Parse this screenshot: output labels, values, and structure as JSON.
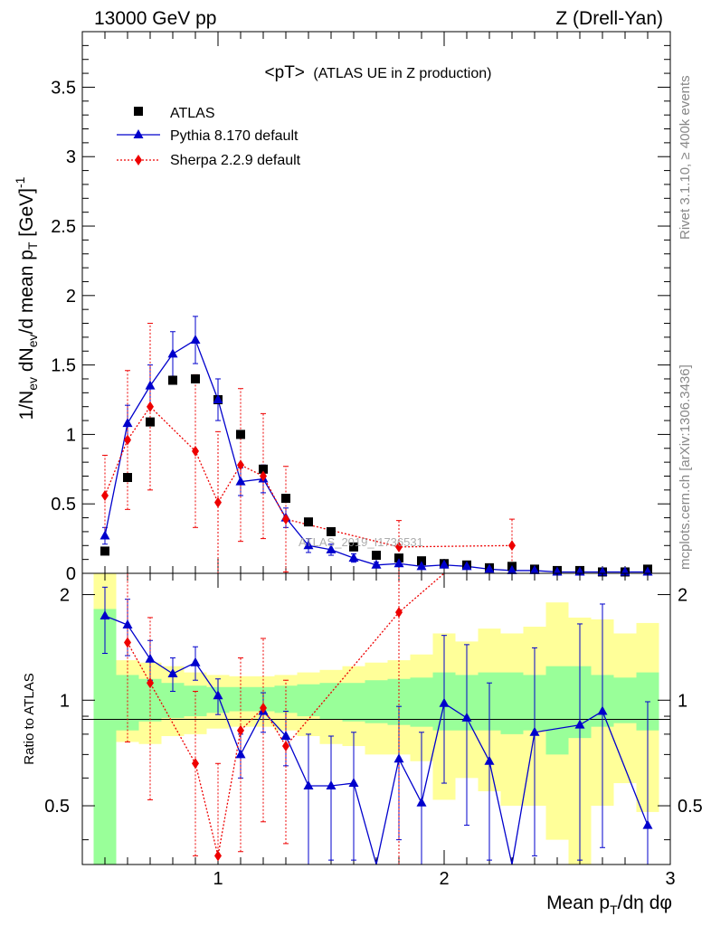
{
  "header": {
    "left": "13000 GeV pp",
    "right": "Z (Drell-Yan)"
  },
  "side_labels": {
    "rivet": "Rivet 3.1.10, ≥ 400k events",
    "mcplots": "mcplots.cern.ch [arXiv:1306.3436]"
  },
  "watermark": "ATLAS_2019_I1736531",
  "chart_data": [
    {
      "type": "scatter",
      "panel": "main",
      "title": "<pT> (ATLAS UE in Z production)",
      "title_main": "<pT>",
      "title_rest": "(ATLAS UE in Z production)",
      "ylabel": "1/N_ev dN_ev/d mean p_T [GeV]^-1",
      "ylabel_parts": {
        "a": "1/N",
        "a_sub": "ev",
        "b": " dN",
        "b_sub": "ev",
        "c": "/d mean p",
        "c_sub": "T",
        "d": " [GeV]",
        "d_sup": "-1"
      },
      "xlim": [
        0.4,
        3.0
      ],
      "ylim": [
        0,
        3.9
      ],
      "y_ticks": [
        "0",
        "0.5",
        "1",
        "1.5",
        "2",
        "2.5",
        "3",
        "3.5"
      ],
      "legend_position": "top-left",
      "series": [
        {
          "name": "ATLAS",
          "color": "#000000",
          "marker": "square",
          "x": [
            0.5,
            0.6,
            0.7,
            0.8,
            0.9,
            1.0,
            1.1,
            1.2,
            1.3,
            1.4,
            1.5,
            1.6,
            1.7,
            1.8,
            1.9,
            2.0,
            2.1,
            2.2,
            2.3,
            2.4,
            2.5,
            2.6,
            2.7,
            2.8,
            2.9
          ],
          "y": [
            0.16,
            0.69,
            1.09,
            1.39,
            1.4,
            1.25,
            1.0,
            0.75,
            0.54,
            0.37,
            0.3,
            0.19,
            0.13,
            0.11,
            0.09,
            0.07,
            0.06,
            0.04,
            0.05,
            0.03,
            0.02,
            0.02,
            0.01,
            0.01,
            0.03
          ]
        },
        {
          "name": "Pythia 8.170 default",
          "color": "#0000cc",
          "marker": "triangle",
          "line": "solid",
          "x": [
            0.5,
            0.6,
            0.7,
            0.8,
            0.9,
            1.0,
            1.1,
            1.2,
            1.3,
            1.4,
            1.5,
            1.6,
            1.7,
            1.8,
            1.9,
            2.0,
            2.1,
            2.2,
            2.3,
            2.4,
            2.5,
            2.6,
            2.7,
            2.8,
            2.9
          ],
          "y": [
            0.27,
            1.08,
            1.35,
            1.58,
            1.68,
            1.25,
            0.66,
            0.68,
            0.4,
            0.2,
            0.17,
            0.11,
            0.06,
            0.07,
            0.05,
            0.06,
            0.05,
            0.03,
            0.02,
            0.02,
            0.01,
            0.01,
            0.01,
            0.01,
            0.01
          ],
          "err": [
            0.06,
            0.13,
            0.15,
            0.16,
            0.17,
            0.15,
            0.1,
            0.1,
            0.07,
            0.05,
            0.04,
            0.03,
            0.02,
            0.02,
            0.02,
            0.02,
            0.02,
            0.01,
            0.01,
            0.01,
            0.01,
            0.01,
            0.01,
            0.01,
            0.01
          ]
        },
        {
          "name": "Sherpa 2.2.9 default",
          "color": "#ee0000",
          "marker": "diamond",
          "line": "dotted",
          "x": [
            0.5,
            0.6,
            0.7,
            0.9,
            1.0,
            1.1,
            1.2,
            1.3,
            1.8,
            2.3
          ],
          "y": [
            0.56,
            0.96,
            1.2,
            0.88,
            0.51,
            0.78,
            0.7,
            0.39,
            0.19,
            0.2
          ],
          "err": [
            0.29,
            0.5,
            0.6,
            0.55,
            0.51,
            0.55,
            0.45,
            0.38,
            0.19,
            0.19
          ]
        }
      ]
    },
    {
      "type": "scatter",
      "panel": "ratio",
      "ylabel": "Ratio to ATLAS",
      "xlabel": "Mean p_T/dη dφ",
      "xlabel_parts": {
        "a": "Mean p",
        "a_sub": "T",
        "b": "/dη dφ"
      },
      "xlim": [
        0.4,
        3.0
      ],
      "ylim": [
        0.34,
        2.3
      ],
      "x_ticks": [
        "1",
        "2",
        "3"
      ],
      "y_ticks": [
        "0.5",
        "1",
        "2"
      ],
      "bands": {
        "x_edges": [
          0.45,
          0.55,
          0.65,
          0.75,
          0.85,
          0.95,
          1.05,
          1.15,
          1.25,
          1.35,
          1.45,
          1.55,
          1.65,
          1.75,
          1.85,
          1.95,
          2.05,
          2.15,
          2.25,
          2.35,
          2.45,
          2.55,
          2.65,
          2.75,
          2.85,
          2.95
        ],
        "green_lo": [
          0.34,
          0.82,
          0.87,
          0.89,
          0.9,
          0.92,
          0.93,
          0.93,
          0.92,
          0.9,
          0.88,
          0.87,
          0.86,
          0.85,
          0.84,
          0.82,
          0.82,
          0.82,
          0.8,
          0.82,
          0.7,
          0.78,
          0.84,
          0.86,
          0.82
        ],
        "green_hi": [
          1.82,
          1.18,
          1.15,
          1.12,
          1.1,
          1.09,
          1.09,
          1.09,
          1.1,
          1.11,
          1.12,
          1.12,
          1.14,
          1.15,
          1.16,
          1.2,
          1.18,
          1.2,
          1.2,
          1.18,
          1.25,
          1.25,
          1.18,
          1.16,
          1.2
        ],
        "yellow_lo": [
          0.34,
          0.76,
          0.75,
          0.79,
          0.8,
          0.83,
          0.84,
          0.84,
          0.82,
          0.79,
          0.75,
          0.74,
          0.7,
          0.7,
          0.67,
          0.52,
          0.6,
          0.55,
          0.5,
          0.5,
          0.4,
          0.34,
          0.5,
          0.58,
          0.48
        ],
        "yellow_hi": [
          2.3,
          1.3,
          1.28,
          1.25,
          1.2,
          1.18,
          1.17,
          1.17,
          1.18,
          1.2,
          1.22,
          1.25,
          1.28,
          1.3,
          1.35,
          1.55,
          1.47,
          1.6,
          1.55,
          1.62,
          1.9,
          1.72,
          1.7,
          1.55,
          1.66
        ]
      },
      "series": [
        {
          "name": "Pythia 8.170 default",
          "color": "#0000cc",
          "marker": "triangle",
          "line": "solid",
          "x": [
            0.5,
            0.6,
            0.7,
            0.8,
            0.9,
            1.0,
            1.1,
            1.2,
            1.3,
            1.4,
            1.5,
            1.6,
            1.7,
            1.8,
            1.9,
            2.0,
            2.1,
            2.2,
            2.3,
            2.4,
            2.6,
            2.7,
            2.9
          ],
          "y": [
            1.74,
            1.64,
            1.31,
            1.19,
            1.28,
            1.03,
            0.7,
            0.93,
            0.79,
            0.57,
            0.57,
            0.58,
            0.34,
            0.68,
            0.51,
            0.98,
            0.89,
            0.67,
            0.32,
            0.81,
            0.85,
            0.93,
            0.44
          ],
          "err_lo": [
            0.38,
            0.3,
            0.17,
            0.13,
            0.14,
            0.12,
            0.1,
            0.12,
            0.14,
            0.23,
            0.22,
            0.23,
            0.0,
            0.28,
            0.17,
            0.4,
            0.45,
            0.32,
            0.0,
            0.45,
            0.5,
            0.55,
            0.1
          ],
          "err_hi": [
            0.36,
            0.3,
            0.17,
            0.13,
            0.14,
            0.12,
            0.1,
            0.12,
            0.14,
            0.23,
            0.22,
            0.23,
            0.0,
            0.28,
            0.3,
            0.55,
            0.55,
            0.45,
            0.0,
            0.6,
            0.8,
            0.95,
            0.55
          ]
        },
        {
          "name": "Sherpa 2.2.9 default",
          "color": "#ee0000",
          "marker": "diamond",
          "line": "dotted",
          "x": [
            0.6,
            0.7,
            0.9,
            1.0,
            1.1,
            1.2,
            1.3,
            1.8,
            2.0
          ],
          "y": [
            1.46,
            1.12,
            0.66,
            0.36,
            0.82,
            0.95,
            0.74,
            1.78,
            2.3
          ],
          "err_lo": [
            0.7,
            0.6,
            0.3,
            0.0,
            0.45,
            0.5,
            0.35,
            1.5,
            0.0
          ],
          "err_hi": [
            0.84,
            0.6,
            0.4,
            0.3,
            0.5,
            0.55,
            0.4,
            0.6,
            0.0
          ]
        }
      ]
    }
  ]
}
